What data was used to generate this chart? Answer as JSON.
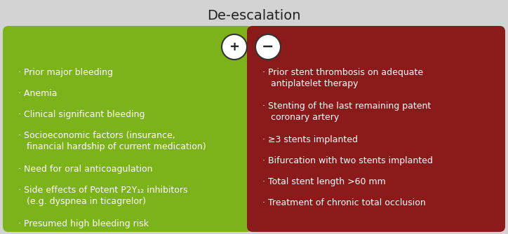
{
  "title": "De-escalation",
  "title_fontsize": 14,
  "background_color": "#d3d3d3",
  "left_box_color": "#7db31a",
  "right_box_color": "#8b1a1a",
  "text_color_white": "#ffffff",
  "text_color_dark": "#222222",
  "left_symbol": "+",
  "right_symbol": "−",
  "left_items": [
    "· Prior major bleeding",
    "· Anemia",
    "· Clinical significant bleeding",
    "· Socioeconomic factors (insurance,\n   financial hardship of current medication)",
    "· Need for oral anticoagulation",
    "· Side effects of Potent P2Y₁₂ inhibitors\n   (e.g. dyspnea in ticagrelor)",
    "· Presumed high bleeding risk"
  ],
  "right_items": [
    "· Prior stent thrombosis on adequate\n   antiplatelet therapy",
    "· Stenting of the last remaining patent\n   coronary artery",
    "· ≥3 stents implanted",
    "· Bifurcation with two stents implanted",
    "· Total stent length >60 mm",
    "· Treatment of chronic total occlusion"
  ],
  "item_fontsize": 9.0,
  "figsize": [
    7.24,
    3.34
  ],
  "dpi": 100
}
